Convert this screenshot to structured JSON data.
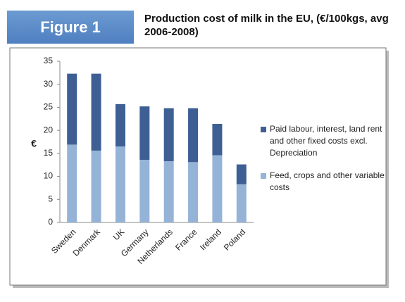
{
  "header": {
    "figure_label": "Figure 1"
  },
  "chart_data": {
    "type": "stacked-bar",
    "title": "Production cost of milk in the EU, (€/100kgs, avg 2006-2008)",
    "y_label": "€",
    "categories": [
      "Sweden",
      "Denmark",
      "UK",
      "Germany",
      "Netherlands",
      "France",
      "Ireland",
      "Poland"
    ],
    "series": [
      {
        "name": "Feed, crops and other variable costs",
        "color": "#95b3d7",
        "values": [
          16.9,
          15.6,
          16.5,
          13.6,
          13.3,
          13.1,
          14.6,
          8.3
        ]
      },
      {
        "name": "Paid labour, interest, land rent and other fixed costs excl. Depreciation",
        "color": "#3e5f94",
        "values": [
          15.4,
          16.7,
          9.2,
          11.6,
          11.5,
          11.7,
          6.8,
          4.3
        ]
      }
    ],
    "ylim": [
      0,
      35
    ],
    "yticks": [
      0,
      5,
      10,
      15,
      20,
      25,
      30,
      35
    ],
    "grid": false,
    "legend": "right"
  }
}
